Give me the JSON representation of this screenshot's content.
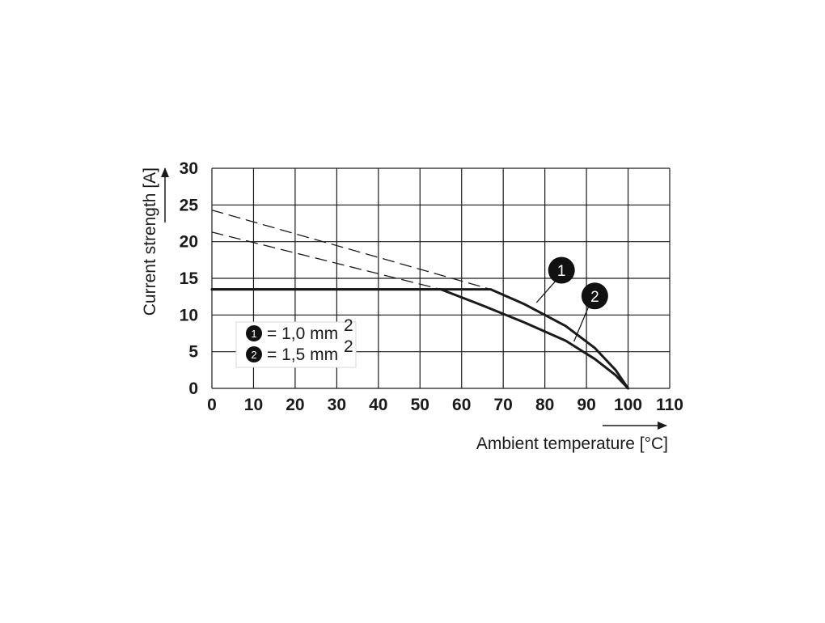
{
  "chart_data": {
    "type": "line",
    "title": "",
    "xlabel": "Ambient temperature [°C]",
    "ylabel": "Current strength [A]",
    "xlim": [
      0,
      110
    ],
    "ylim": [
      0,
      30
    ],
    "x_ticks": [
      "0",
      "10",
      "20",
      "30",
      "40",
      "50",
      "60",
      "70",
      "80",
      "90",
      "100",
      "110"
    ],
    "y_ticks": [
      "0",
      "5",
      "10",
      "15",
      "20",
      "25",
      "30"
    ],
    "grid": true,
    "legend": {
      "placement": "bottom-left",
      "entries": [
        {
          "marker": "1",
          "text": "= 1,0 mm",
          "sup": "2"
        },
        {
          "marker": "2",
          "text": "= 1,5 mm",
          "sup": "2"
        }
      ]
    },
    "series": [
      {
        "marker": "1",
        "style": "solid",
        "points": [
          [
            0,
            13.5
          ],
          [
            67,
            13.5
          ],
          [
            75,
            11.5
          ],
          [
            85,
            8.5
          ],
          [
            92,
            5.5
          ],
          [
            97,
            2.5
          ],
          [
            100,
            0
          ]
        ]
      },
      {
        "marker": "2",
        "style": "solid",
        "points": [
          [
            0,
            13.5
          ],
          [
            55,
            13.5
          ],
          [
            65,
            11.3
          ],
          [
            75,
            9.0
          ],
          [
            85,
            6.5
          ],
          [
            92,
            4.0
          ],
          [
            97,
            1.8
          ],
          [
            100,
            0
          ]
        ]
      },
      {
        "marker": "1",
        "style": "dashed",
        "points": [
          [
            0,
            24.3
          ],
          [
            67,
            13.5
          ]
        ]
      },
      {
        "marker": "2",
        "style": "dashed",
        "points": [
          [
            0,
            21.3
          ],
          [
            55,
            13.5
          ]
        ]
      }
    ],
    "callouts": [
      {
        "label": "1",
        "at": [
          84,
          16.1
        ],
        "target": [
          78,
          11.7
        ]
      },
      {
        "label": "2",
        "at": [
          92,
          12.6
        ],
        "target": [
          87,
          6.4
        ]
      }
    ]
  }
}
